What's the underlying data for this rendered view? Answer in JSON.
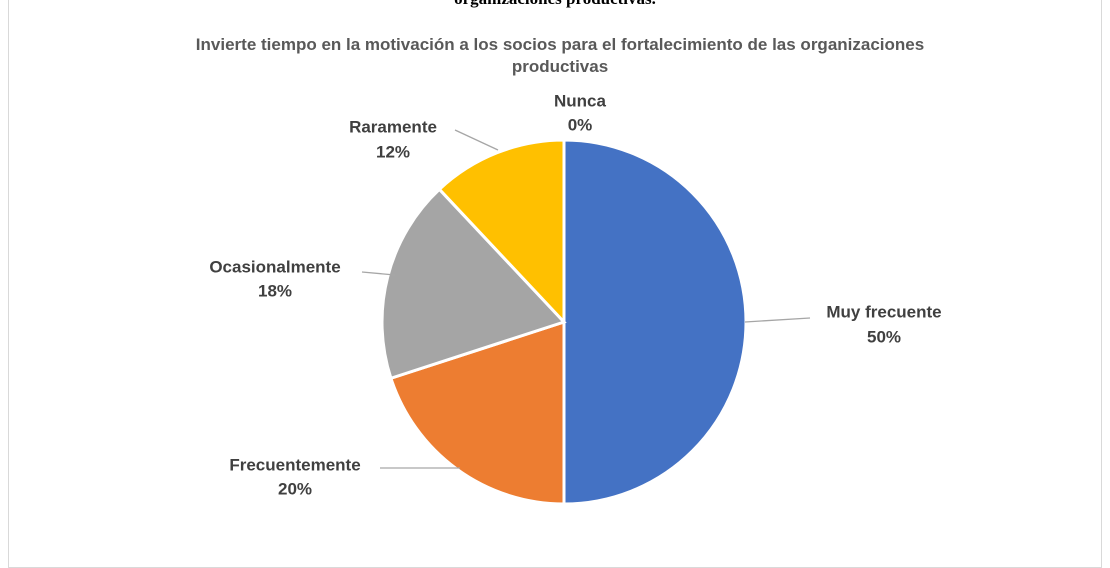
{
  "heading": "organizaciones productivas.",
  "chart_data": {
    "type": "pie",
    "title": "Invierte tiempo en la motivación  a  los socios  para el fortalecimiento de las organizaciones productivas",
    "categories": [
      "Muy frecuente",
      "Frecuentemente",
      "Ocasionalmente",
      "Raramente",
      "Nunca"
    ],
    "values": [
      50,
      20,
      18,
      12,
      0
    ],
    "value_labels": [
      "50%",
      "20%",
      "18%",
      "12%",
      "0%"
    ],
    "colors": [
      "#4472c4",
      "#ed7d31",
      "#a5a5a5",
      "#ffc000",
      "#5b9bd5"
    ]
  }
}
